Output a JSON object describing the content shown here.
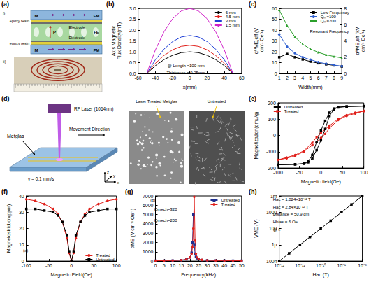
{
  "diagrams": [
    {
      "panel_label": "(a)",
      "schematic": {
        "label": "i)",
        "top_layer": "FM",
        "adhesive": "epoxy resin",
        "electrode": "Electrode",
        "middle_layer": "FE",
        "polarization": "P",
        "magnetization": "M",
        "bottom_layer": "FM"
      },
      "photo": {
        "label": "ii)"
      }
    },
    {
      "panel_label": "(d)",
      "material": "Metglas",
      "laser": "RF Laser (1064nm)",
      "speed": "v = 0.1 mm/s",
      "motion": "Movement Direction",
      "axes": [
        "x",
        "y",
        "z"
      ],
      "treated_image": "Laser Treated Metglas",
      "untreated_image": "Untreated"
    }
  ],
  "chart_data": [
    {
      "panel_label": "(b)",
      "type": "line",
      "x_label": "x(mm)",
      "y_label": "Axis Magnetic Flux Density(mT)",
      "x": [
        -50,
        -40,
        -30,
        -20,
        -10,
        0,
        10,
        20,
        30,
        40,
        50
      ],
      "series": [
        {
          "name": "6 mm",
          "color": "#000000",
          "marker": "none",
          "values": [
            0,
            0.36,
            0.64,
            0.84,
            0.96,
            1.0,
            0.96,
            0.84,
            0.64,
            0.36,
            0
          ]
        },
        {
          "name": "4.5 mm",
          "color": "#e0201b",
          "marker": "none",
          "values": [
            0,
            0.47,
            0.83,
            1.09,
            1.25,
            1.3,
            1.25,
            1.09,
            0.83,
            0.47,
            0
          ]
        },
        {
          "name": "3 mm",
          "color": "#1f3fd6",
          "marker": "none",
          "values": [
            0,
            0.63,
            1.12,
            1.47,
            1.68,
            1.75,
            1.68,
            1.47,
            1.12,
            0.63,
            0
          ]
        },
        {
          "name": "1.5 mm",
          "color": "#d020c8",
          "marker": "none",
          "values": [
            0,
            1.08,
            1.92,
            2.52,
            2.88,
            3.0,
            2.88,
            2.52,
            1.92,
            1.08,
            0
          ]
        }
      ],
      "xlim": [
        -60,
        60
      ],
      "xticks": [
        -60,
        -40,
        -20,
        0,
        20,
        40,
        60
      ],
      "ylim": [
        0,
        3
      ],
      "yticks": [
        {
          "value": 0,
          "label": "0.0"
        },
        0.5,
        {
          "value": 1,
          "label": "1.0"
        },
        1.5,
        {
          "value": 2,
          "label": "2.0"
        },
        2.5,
        {
          "value": 3,
          "label": "3.0"
        }
      ],
      "annotations": [
        "@ Length =100 mm",
        "Thickness = 0.25mm"
      ],
      "legend": "top-right",
      "grid": false
    },
    {
      "panel_label": "(c)",
      "type": "line",
      "x_label": "Width(mm)",
      "y_label": "αᴸᶠME,eff (V cm⁻¹ Oe⁻¹)",
      "y2_label": "αᴿME,eff (kV cm⁻¹ Oe⁻¹)",
      "x": [
        1,
        2,
        3,
        4,
        5,
        6,
        7,
        8,
        9
      ],
      "series": [
        {
          "name": "Low Frequency",
          "color": "#000000",
          "marker": "square",
          "values": [
            15,
            18,
            15,
            13,
            11,
            9.5,
            8.5,
            7.5,
            6.5
          ]
        },
        {
          "name": "Qₘ=100",
          "color": "#2f5fd0",
          "marker": "circle",
          "axis": "y2",
          "values": [
            4.8,
            3.3,
            2.5,
            2.0,
            1.7,
            1.4,
            1.2,
            1.05,
            0.9
          ]
        },
        {
          "name": "Qₘ=200",
          "color": "#2ca02c",
          "marker": "triangle",
          "axis": "y2",
          "values": [
            7.8,
            5.9,
            4.5,
            3.6,
            3.0,
            2.6,
            2.3,
            2.1,
            1.9
          ]
        }
      ],
      "xlim": [
        1,
        9
      ],
      "xticks": [
        1,
        2,
        3,
        4,
        5,
        6,
        7,
        8,
        9
      ],
      "ylim": [
        0,
        60
      ],
      "yticks": [
        0,
        10,
        20,
        30,
        40,
        50,
        60
      ],
      "y2lim": [
        0,
        8
      ],
      "y2ticks": [
        0,
        2,
        4,
        6,
        8
      ],
      "annotations": [
        "Resonant Frequency"
      ],
      "legend": "top-right",
      "grid": false
    },
    {
      "panel_label": "(e)",
      "type": "line",
      "x_label": "Magnetic field(Oe)",
      "y_label": "Magnetization(emu/g)",
      "series": [
        {
          "name": "Untreated",
          "color": "#000000",
          "marker": "square",
          "x": [
            100,
            60,
            40,
            30,
            20,
            10,
            0,
            -10,
            -20,
            -30,
            -40,
            -60,
            -100,
            -60,
            -40,
            -30,
            -20,
            -10,
            0,
            10,
            20,
            30,
            40,
            60,
            100
          ],
          "values": [
            180,
            178,
            174,
            165,
            140,
            90,
            30,
            -40,
            -120,
            -160,
            -172,
            -177,
            -180,
            -178,
            -174,
            -165,
            -140,
            -90,
            -30,
            40,
            120,
            160,
            172,
            177,
            180
          ]
        },
        {
          "name": "Treated",
          "color": "#e0201b",
          "marker": "circle",
          "x": [
            100,
            80,
            60,
            40,
            20,
            0,
            -10,
            -20,
            -40,
            -60,
            -80,
            -100,
            -80,
            -60,
            -40,
            -20,
            0,
            10,
            20,
            40,
            60,
            80,
            100
          ],
          "values": [
            150,
            140,
            125,
            100,
            60,
            15,
            -10,
            -45,
            -95,
            -120,
            -135,
            -150,
            -140,
            -125,
            -100,
            -60,
            -15,
            10,
            45,
            95,
            120,
            135,
            150
          ]
        }
      ],
      "xlim": [
        -100,
        100
      ],
      "xticks": [
        -100,
        -50,
        0,
        50,
        100
      ],
      "ylim": [
        -200,
        200
      ],
      "yticks": [
        -200,
        -100,
        0,
        100,
        200
      ],
      "legend": "top-left",
      "grid": false
    },
    {
      "panel_label": "(f)",
      "type": "line",
      "x_label": "Magnetic Field(Oe)",
      "y_label": "Magnetostriction(ppm)",
      "x": [
        -100,
        -80,
        -60,
        -40,
        -30,
        -20,
        -10,
        -5,
        0,
        5,
        10,
        20,
        30,
        40,
        60,
        80,
        100
      ],
      "series": [
        {
          "name": "Treated",
          "color": "#e0201b",
          "marker": "circle",
          "values": [
            38,
            37,
            35,
            32,
            29,
            24,
            14,
            5,
            0,
            5,
            14,
            24,
            29,
            32,
            35,
            37,
            38
          ]
        },
        {
          "name": "Untreated",
          "color": "#000000",
          "marker": "square",
          "values": [
            32,
            32,
            31,
            30,
            28,
            24,
            16,
            6,
            0,
            6,
            16,
            24,
            28,
            30,
            31,
            32,
            32
          ]
        }
      ],
      "xlim": [
        -100,
        100
      ],
      "xticks": [
        -100,
        -50,
        0,
        50,
        100
      ],
      "ylim": [
        0,
        40
      ],
      "yticks": [
        0,
        10,
        20,
        30,
        40
      ],
      "annotations": [
        "(e)"
      ],
      "legend": "bottom-right",
      "grid": false
    },
    {
      "panel_label": "(g)",
      "type": "line",
      "x_label": "Frequency(kHz)",
      "y_label": "αME (V cm⁻¹ Oe⁻¹)",
      "x": [
        0,
        5,
        10,
        15,
        18,
        20,
        21,
        21.5,
        22,
        22.5,
        23,
        23.5,
        24,
        25,
        27,
        30,
        35,
        40,
        45,
        50
      ],
      "series": [
        {
          "name": "Untreated",
          "color": "#1f2f8f",
          "marker": "square",
          "values": [
            40,
            45,
            60,
            100,
            200,
            400,
            900,
            2000,
            5000,
            1800,
            800,
            450,
            300,
            200,
            120,
            80,
            60,
            50,
            45,
            40
          ]
        },
        {
          "name": "Treated",
          "color": "#e0201b",
          "marker": "circle",
          "values": [
            40,
            45,
            60,
            100,
            200,
            400,
            800,
            1500,
            3500,
            6900,
            2200,
            800,
            400,
            220,
            130,
            85,
            60,
            50,
            45,
            40
          ]
        }
      ],
      "xlim": [
        0,
        50
      ],
      "xticks": [
        0,
        5,
        10,
        15,
        20,
        25,
        30,
        35,
        40,
        45,
        50
      ],
      "ylim": [
        0,
        7000
      ],
      "yticks": [
        0,
        1000,
        2000,
        3000,
        4000,
        5000,
        6000,
        7000
      ],
      "annotations": [
        "Qmech=320",
        "Qmech=200",
        "(b)"
      ],
      "legend": "top-right",
      "grid": false
    },
    {
      "panel_label": "(h)",
      "type": "line",
      "x_label": "Hac (T)",
      "y_label": "VME (V)",
      "log": true,
      "x": [
        1e-12,
        3e-12,
        1e-11,
        3e-11,
        1e-10,
        3e-10,
        1e-09,
        3e-09,
        1e-08
      ],
      "series": [
        {
          "color": "#000000",
          "marker": "square",
          "values": [
            1e-07,
            3e-07,
            1e-06,
            3e-06,
            1e-05,
            3e-05,
            0.0001,
            0.0003,
            0.001
          ]
        }
      ],
      "xlim": [
        1e-12,
        1e-08
      ],
      "xticks": [
        {
          "value": 1e-12,
          "label": "10⁻¹²"
        },
        {
          "value": 1e-11,
          "label": "10⁻¹¹"
        },
        {
          "value": 1e-10,
          "label": "10⁻¹⁰"
        },
        {
          "value": 1e-09,
          "label": "10⁻⁹"
        },
        {
          "value": 1e-08,
          "label": "10⁻⁸"
        }
      ],
      "ylim": [
        1e-07,
        0.001
      ],
      "yticks": [
        {
          "value": 1e-07,
          "label": "100n"
        },
        {
          "value": 1e-06,
          "label": "1μ"
        },
        {
          "value": 1e-05,
          "label": "10μ"
        },
        {
          "value": 0.0001,
          "label": "100μ"
        },
        {
          "value": 0.001,
          "label": "1m"
        }
      ],
      "annotations": [
        "Hac = 1.024×10⁻¹² T",
        "Hac = 2.84×10⁻¹² T",
        "Distance = 50.9 cm",
        "Hbias = 6 Oe",
        "@ fᵣ"
      ],
      "grid": false
    }
  ]
}
